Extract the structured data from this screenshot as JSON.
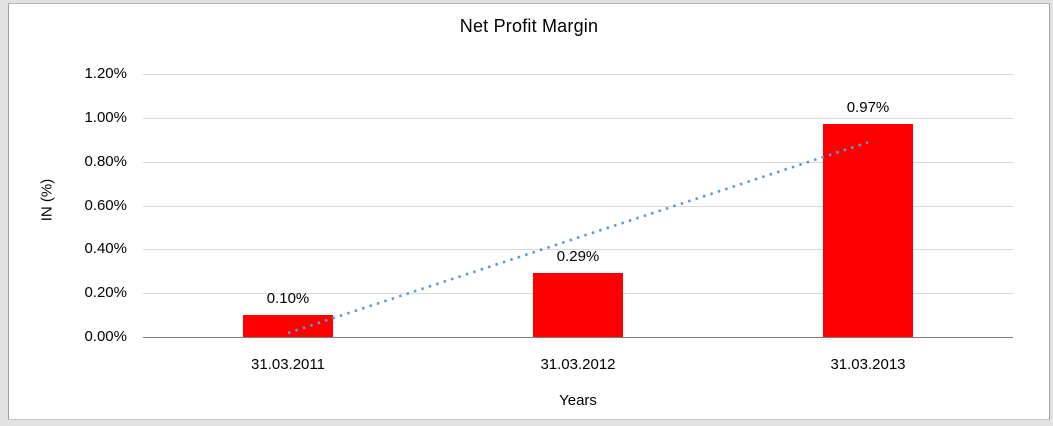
{
  "chart_data": {
    "type": "bar",
    "title": "Net Profit Margin",
    "xlabel": "Years",
    "ylabel": "IN (%)",
    "categories": [
      "31.03.2011",
      "31.03.2012",
      "31.03.2013"
    ],
    "values": [
      0.1,
      0.29,
      0.97
    ],
    "data_labels": [
      "0.10%",
      "0.29%",
      "0.97%"
    ],
    "ylim": [
      0,
      1.2
    ],
    "ytick_step": 0.2,
    "ytick_labels": [
      "0.00%",
      "0.20%",
      "0.40%",
      "0.60%",
      "0.80%",
      "1.00%",
      "1.20%"
    ],
    "grid": true,
    "legend": "none",
    "bar_color": "#ff0000",
    "gridline_color": "#d9d9d9",
    "axis_line_color": "#7f7f7f",
    "text_color": "#000000",
    "trendline": {
      "type": "linear",
      "style": "dotted",
      "color": "#5b9bd5"
    }
  }
}
